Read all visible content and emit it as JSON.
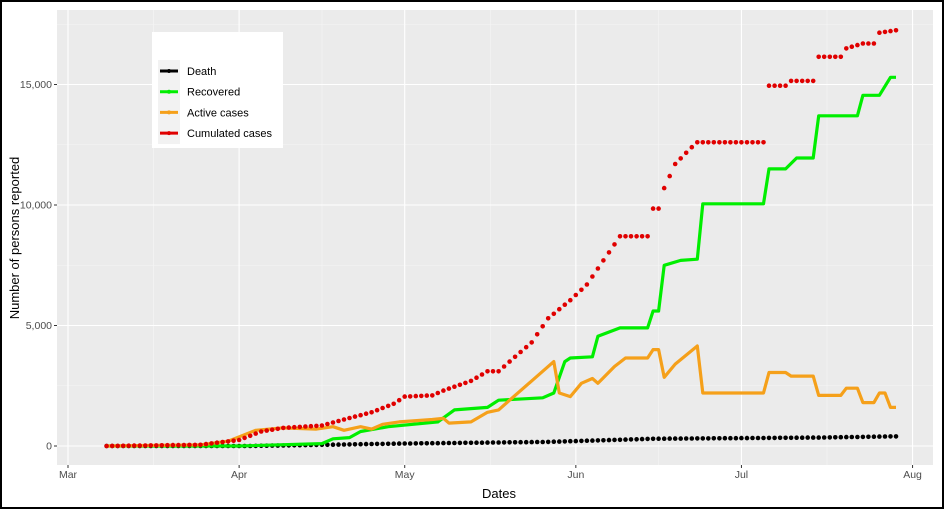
{
  "chart_data": {
    "type": "line",
    "title": "",
    "xlabel": "Dates",
    "ylabel": "Number of persons reported",
    "xlim": [
      "2020-02-25",
      "2020-08-04"
    ],
    "ylim": [
      -800,
      18000
    ],
    "x_ticks": [
      {
        "date": "2020-03-01",
        "label": "Mar"
      },
      {
        "date": "2020-04-01",
        "label": "Apr"
      },
      {
        "date": "2020-05-01",
        "label": "May"
      },
      {
        "date": "2020-06-01",
        "label": "Jun"
      },
      {
        "date": "2020-07-01",
        "label": "Jul"
      },
      {
        "date": "2020-08-01",
        "label": "Aug"
      }
    ],
    "y_ticks": [
      {
        "value": 0,
        "label": "0"
      },
      {
        "value": 5000,
        "label": "5,000"
      },
      {
        "value": 10000,
        "label": "10,000"
      },
      {
        "value": 15000,
        "label": "15,000"
      }
    ],
    "grid": true,
    "legend": {
      "title": "",
      "placement": "top-left"
    },
    "series": [
      {
        "name": "Death",
        "color": "#000000",
        "style": "points",
        "points": [
          [
            "2020-03-08",
            0
          ],
          [
            "2020-04-03",
            0
          ],
          [
            "2020-04-30",
            100
          ],
          [
            "2020-05-27",
            170
          ],
          [
            "2020-06-15",
            300
          ],
          [
            "2020-07-15",
            350
          ],
          [
            "2020-07-29",
            400
          ]
        ]
      },
      {
        "name": "Recovered",
        "color": "#00ee00",
        "style": "line",
        "points": [
          [
            "2020-03-08",
            0
          ],
          [
            "2020-04-01",
            0
          ],
          [
            "2020-04-16",
            100
          ],
          [
            "2020-04-18",
            300
          ],
          [
            "2020-04-21",
            350
          ],
          [
            "2020-04-23",
            600
          ],
          [
            "2020-04-28",
            800
          ],
          [
            "2020-05-07",
            1000
          ],
          [
            "2020-05-10",
            1500
          ],
          [
            "2020-05-16",
            1600
          ],
          [
            "2020-05-18",
            1900
          ],
          [
            "2020-05-26",
            2000
          ],
          [
            "2020-05-28",
            2200
          ],
          [
            "2020-05-30",
            3500
          ],
          [
            "2020-05-31",
            3650
          ],
          [
            "2020-06-04",
            3700
          ],
          [
            "2020-06-05",
            4550
          ],
          [
            "2020-06-09",
            4900
          ],
          [
            "2020-06-14",
            4900
          ],
          [
            "2020-06-15",
            5600
          ],
          [
            "2020-06-16",
            5600
          ],
          [
            "2020-06-17",
            7500
          ],
          [
            "2020-06-20",
            7700
          ],
          [
            "2020-06-23",
            7750
          ],
          [
            "2020-06-24",
            10050
          ],
          [
            "2020-07-05",
            10050
          ],
          [
            "2020-07-06",
            11500
          ],
          [
            "2020-07-09",
            11500
          ],
          [
            "2020-07-11",
            11950
          ],
          [
            "2020-07-14",
            11950
          ],
          [
            "2020-07-15",
            13700
          ],
          [
            "2020-07-22",
            13700
          ],
          [
            "2020-07-23",
            14550
          ],
          [
            "2020-07-26",
            14550
          ],
          [
            "2020-07-28",
            15300
          ],
          [
            "2020-07-29",
            15300
          ]
        ]
      },
      {
        "name": "Active cases",
        "color": "#f5a01a",
        "style": "line",
        "points": [
          [
            "2020-03-08",
            0
          ],
          [
            "2020-03-25",
            50
          ],
          [
            "2020-03-30",
            200
          ],
          [
            "2020-04-04",
            650
          ],
          [
            "2020-04-09",
            750
          ],
          [
            "2020-04-15",
            700
          ],
          [
            "2020-04-18",
            800
          ],
          [
            "2020-04-20",
            650
          ],
          [
            "2020-04-23",
            800
          ],
          [
            "2020-04-25",
            700
          ],
          [
            "2020-04-27",
            900
          ],
          [
            "2020-04-30",
            1000
          ],
          [
            "2020-05-06",
            1100
          ],
          [
            "2020-05-08",
            1150
          ],
          [
            "2020-05-09",
            950
          ],
          [
            "2020-05-13",
            1000
          ],
          [
            "2020-05-16",
            1400
          ],
          [
            "2020-05-18",
            1500
          ],
          [
            "2020-05-20",
            1900
          ],
          [
            "2020-05-24",
            2700
          ],
          [
            "2020-05-28",
            3500
          ],
          [
            "2020-05-29",
            2200
          ],
          [
            "2020-05-31",
            2050
          ],
          [
            "2020-06-02",
            2600
          ],
          [
            "2020-06-04",
            2800
          ],
          [
            "2020-06-05",
            2600
          ],
          [
            "2020-06-08",
            3300
          ],
          [
            "2020-06-10",
            3650
          ],
          [
            "2020-06-14",
            3650
          ],
          [
            "2020-06-15",
            4000
          ],
          [
            "2020-06-16",
            4000
          ],
          [
            "2020-06-17",
            2850
          ],
          [
            "2020-06-19",
            3400
          ],
          [
            "2020-06-23",
            4150
          ],
          [
            "2020-06-24",
            2200
          ],
          [
            "2020-07-05",
            2200
          ],
          [
            "2020-07-06",
            3050
          ],
          [
            "2020-07-09",
            3050
          ],
          [
            "2020-07-10",
            2900
          ],
          [
            "2020-07-14",
            2900
          ],
          [
            "2020-07-15",
            2100
          ],
          [
            "2020-07-19",
            2100
          ],
          [
            "2020-07-20",
            2400
          ],
          [
            "2020-07-22",
            2400
          ],
          [
            "2020-07-23",
            1800
          ],
          [
            "2020-07-25",
            1800
          ],
          [
            "2020-07-26",
            2200
          ],
          [
            "2020-07-27",
            2200
          ],
          [
            "2020-07-28",
            1600
          ],
          [
            "2020-07-29",
            1600
          ]
        ]
      },
      {
        "name": "Cumulated cases",
        "color": "#e00000",
        "style": "points",
        "points": [
          [
            "2020-03-08",
            0
          ],
          [
            "2020-03-25",
            50
          ],
          [
            "2020-04-01",
            250
          ],
          [
            "2020-04-05",
            600
          ],
          [
            "2020-04-09",
            750
          ],
          [
            "2020-04-16",
            850
          ],
          [
            "2020-04-20",
            1100
          ],
          [
            "2020-04-25",
            1400
          ],
          [
            "2020-04-29",
            1750
          ],
          [
            "2020-05-01",
            2050
          ],
          [
            "2020-05-06",
            2100
          ],
          [
            "2020-05-08",
            2300
          ],
          [
            "2020-05-13",
            2700
          ],
          [
            "2020-05-16",
            3100
          ],
          [
            "2020-05-18",
            3100
          ],
          [
            "2020-05-20",
            3500
          ],
          [
            "2020-05-24",
            4300
          ],
          [
            "2020-05-27",
            5300
          ],
          [
            "2020-05-31",
            6050
          ],
          [
            "2020-06-03",
            6700
          ],
          [
            "2020-06-06",
            7700
          ],
          [
            "2020-06-09",
            8700
          ],
          [
            "2020-06-14",
            8700
          ],
          [
            "2020-06-15",
            9850
          ],
          [
            "2020-06-16",
            9850
          ],
          [
            "2020-06-17",
            10700
          ],
          [
            "2020-06-19",
            11700
          ],
          [
            "2020-06-22",
            12400
          ],
          [
            "2020-06-23",
            12600
          ],
          [
            "2020-07-05",
            12600
          ],
          [
            "2020-07-06",
            14950
          ],
          [
            "2020-07-09",
            14950
          ],
          [
            "2020-07-10",
            15150
          ],
          [
            "2020-07-14",
            15150
          ],
          [
            "2020-07-15",
            16150
          ],
          [
            "2020-07-19",
            16150
          ],
          [
            "2020-07-20",
            16500
          ],
          [
            "2020-07-23",
            16700
          ],
          [
            "2020-07-25",
            16700
          ],
          [
            "2020-07-26",
            17150
          ],
          [
            "2020-07-29",
            17250
          ]
        ]
      }
    ]
  }
}
